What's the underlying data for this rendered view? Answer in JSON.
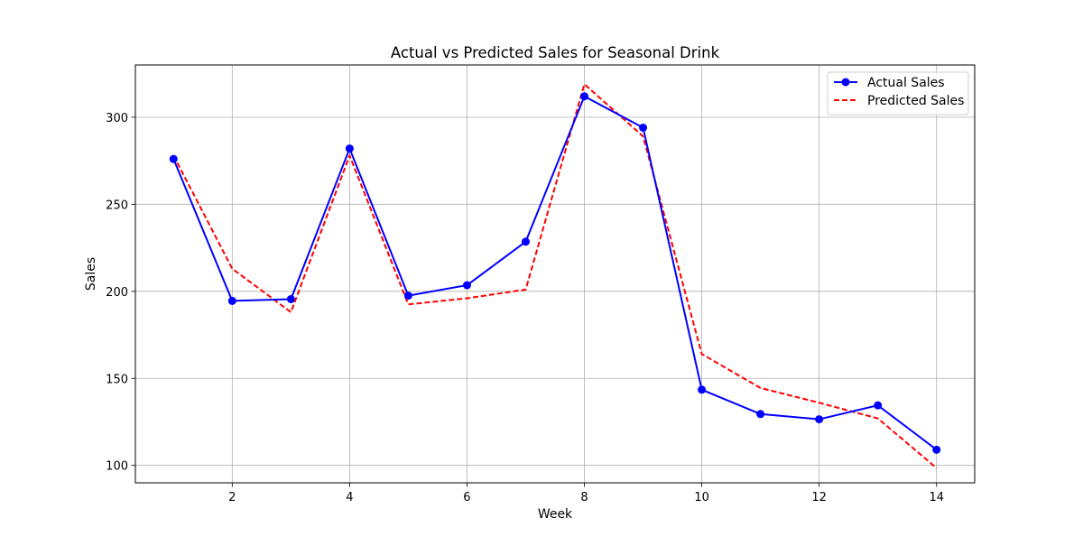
{
  "chart_data": {
    "type": "line",
    "title": "Actual vs Predicted Sales for Seasonal Drink",
    "xlabel": "Week",
    "ylabel": "Sales",
    "x": [
      1,
      2,
      3,
      4,
      5,
      6,
      7,
      8,
      9,
      10,
      11,
      12,
      13,
      14
    ],
    "xlim": [
      0.35,
      14.65
    ],
    "ylim": [
      90,
      330
    ],
    "xticks": [
      2,
      4,
      6,
      8,
      10,
      12,
      14
    ],
    "yticks": [
      100,
      150,
      200,
      250,
      300
    ],
    "grid": true,
    "legend_position": "top-right",
    "series": [
      {
        "name": "Actual Sales",
        "values": [
          276,
          194.5,
          195.5,
          282,
          197.5,
          203.5,
          228.5,
          312,
          294,
          143.5,
          129.5,
          126.5,
          134.5,
          109
        ],
        "color": "#0000ff",
        "line_style": "solid",
        "marker": "circle"
      },
      {
        "name": "Predicted Sales",
        "values": [
          278,
          213,
          188,
          278,
          192.5,
          196,
          201,
          319,
          289,
          164,
          144.5,
          136,
          127,
          98.5
        ],
        "color": "#ff0000",
        "line_style": "dashed",
        "marker": "none"
      }
    ]
  }
}
